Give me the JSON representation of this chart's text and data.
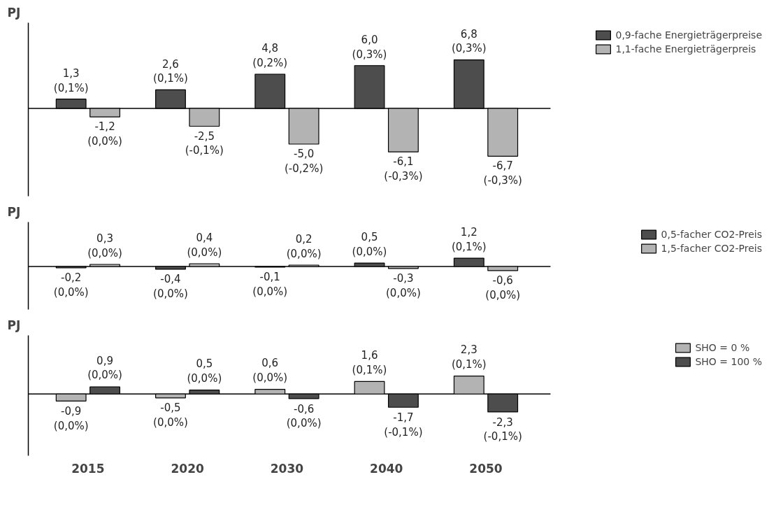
{
  "chart_data": [
    {
      "type": "bar",
      "ylabel": "PJ",
      "categories": [
        "2015",
        "2020",
        "2030",
        "2040",
        "2050"
      ],
      "legend": "top right",
      "tick_labels": false,
      "data_labels": true,
      "series": [
        {
          "name": "0,9-fache Energieträgerpreise",
          "color": "#4d4d4d",
          "values": [
            1.3,
            2.6,
            4.8,
            6.0,
            6.8
          ],
          "value_labels": [
            "1,3\n(0,1%)",
            "2,6\n(0,1%)",
            "4,8\n(0,2%)",
            "6,0\n(0,3%)",
            "6,8\n(0,3%)"
          ]
        },
        {
          "name": "1,1-fache Energieträgerpreis",
          "color": "#b3b3b3",
          "values": [
            -1.2,
            -2.5,
            -5.0,
            -6.1,
            -6.7
          ],
          "value_labels": [
            "-1,2\n(0,0%)",
            "-2,5\n(-0,1%)",
            "-5,0\n(-0,2%)",
            "-6,1\n(-0,3%)",
            "-6,7\n(-0,3%)"
          ]
        }
      ]
    },
    {
      "type": "bar",
      "ylabel": "PJ",
      "categories": [
        "2015",
        "2020",
        "2030",
        "2040",
        "2050"
      ],
      "legend": "top right",
      "tick_labels": false,
      "data_labels": true,
      "series": [
        {
          "name": "0,5-facher CO2-Preis",
          "color": "#4d4d4d",
          "values": [
            -0.2,
            -0.4,
            -0.1,
            0.5,
            1.2
          ],
          "value_labels": [
            "-0,2\n(0,0%)",
            "-0,4\n(0,0%)",
            "-0,1\n(0,0%)",
            "0,5\n(0,0%)",
            "1,2\n(0,1%)"
          ]
        },
        {
          "name": "1,5-facher CO2-Preis",
          "color": "#b3b3b3",
          "values": [
            0.3,
            0.4,
            0.2,
            -0.3,
            -0.6
          ],
          "value_labels": [
            "0,3\n(0,0%)",
            "0,4\n(0,0%)",
            "0,2\n(0,0%)",
            "-0,3\n(0,0%)",
            "-0,6\n(0,0%)"
          ]
        }
      ]
    },
    {
      "type": "bar",
      "ylabel": "PJ",
      "categories": [
        "2015",
        "2020",
        "2030",
        "2040",
        "2050"
      ],
      "legend": "top right",
      "tick_labels": "x",
      "data_labels": true,
      "series": [
        {
          "name": "SHO = 0 %",
          "color": "#b3b3b3",
          "values": [
            -0.9,
            -0.5,
            0.6,
            1.6,
            2.3
          ],
          "value_labels": [
            "-0,9\n(0,0%)",
            "-0,5\n(0,0%)",
            "0,6\n(0,0%)",
            "1,6\n(0,1%)",
            "2,3\n(0,1%)"
          ]
        },
        {
          "name": "SHO = 100 %",
          "color": "#4d4d4d",
          "values": [
            0.9,
            0.5,
            -0.6,
            -1.7,
            -2.3
          ],
          "value_labels": [
            "0,9\n(0,0%)",
            "0,5\n(0,0%)",
            "-0,6\n(0,0%)",
            "-1,7\n(-0,1%)",
            "-2,3\n(-0,1%)"
          ]
        }
      ]
    }
  ]
}
